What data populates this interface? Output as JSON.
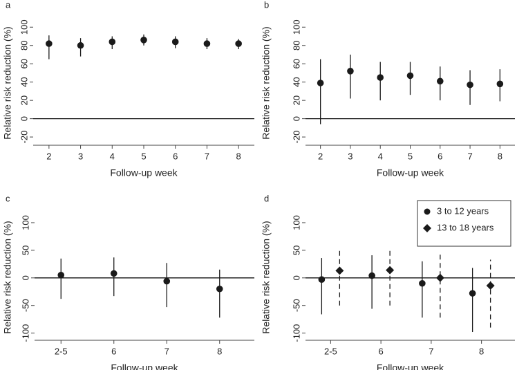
{
  "chart_data": [
    {
      "type": "pointrange",
      "panel": "a",
      "ylabel": "Relative risk reduction (%)",
      "xlabel": "Follow-up week",
      "x": [
        2,
        3,
        4,
        5,
        6,
        7,
        8
      ],
      "xlim": [
        1.5,
        8.5
      ],
      "xticks": [
        2,
        3,
        4,
        5,
        6,
        7,
        8
      ],
      "ylim": [
        -29,
        107
      ],
      "yticks": [
        -20,
        0,
        20,
        40,
        60,
        80,
        100
      ],
      "hline": 0,
      "series": [
        {
          "color": "#1a1a1a",
          "marker": "circle",
          "line_style": "solid",
          "values": [
            82,
            80,
            84,
            86,
            84,
            82,
            82
          ],
          "lower": [
            65,
            68,
            76,
            80,
            77,
            76,
            76
          ],
          "upper": [
            91,
            88,
            90,
            92,
            90,
            88,
            87
          ]
        }
      ]
    },
    {
      "type": "pointrange",
      "panel": "b",
      "ylabel": "Relative risk reduction (%)",
      "xlabel": "Follow-up week",
      "x": [
        2,
        3,
        4,
        5,
        6,
        7,
        8
      ],
      "xlim": [
        1.5,
        8.5
      ],
      "xticks": [
        2,
        3,
        4,
        5,
        6,
        7,
        8
      ],
      "ylim": [
        -29,
        107
      ],
      "yticks": [
        -20,
        0,
        20,
        40,
        60,
        80,
        100
      ],
      "hline": 0,
      "series": [
        {
          "color": "#1a1a1a",
          "marker": "circle",
          "line_style": "solid",
          "values": [
            39,
            52,
            45,
            47,
            41,
            37,
            38
          ],
          "lower": [
            -6,
            22,
            20,
            26,
            20,
            15,
            19
          ],
          "upper": [
            65,
            70,
            62,
            62,
            57,
            53,
            54
          ]
        }
      ]
    },
    {
      "type": "pointrange",
      "panel": "c",
      "ylabel": "Relative risk reduction (%)",
      "xlabel": "Follow-up week",
      "categories": [
        "2-5",
        "6",
        "7",
        "8"
      ],
      "ylim": [
        -113,
        115
      ],
      "yticks": [
        -100,
        -50,
        0,
        50,
        100
      ],
      "hline": 0,
      "series": [
        {
          "color": "#1a1a1a",
          "marker": "circle",
          "line_style": "solid",
          "values": [
            5,
            8,
            -6,
            -20
          ],
          "lower": [
            -38,
            -33,
            -53,
            -72
          ],
          "upper": [
            35,
            37,
            27,
            15
          ]
        }
      ]
    },
    {
      "type": "pointrange",
      "panel": "d",
      "ylabel": "Relative risk reduction (%)",
      "xlabel": "Follow-up week",
      "categories": [
        "2-5",
        "6",
        "7",
        "8"
      ],
      "ylim": [
        -113,
        115
      ],
      "yticks": [
        -100,
        -50,
        0,
        50,
        100
      ],
      "hline": 0,
      "legend": "top-right",
      "series": [
        {
          "name": "3 to 12 years",
          "color": "#1a1a1a",
          "marker": "circle",
          "line_style": "solid",
          "values": [
            -3,
            4,
            -10,
            -28
          ],
          "lower": [
            -66,
            -56,
            -72,
            -98
          ],
          "upper": [
            36,
            41,
            30,
            18
          ]
        },
        {
          "name": "13 to 18 years",
          "color": "#1a1a1a",
          "marker": "diamond",
          "line_style": "dashed",
          "values": [
            13,
            14,
            0,
            -14
          ],
          "lower": [
            -50,
            -50,
            -72,
            -90
          ],
          "upper": [
            50,
            50,
            43,
            33
          ]
        }
      ]
    }
  ]
}
